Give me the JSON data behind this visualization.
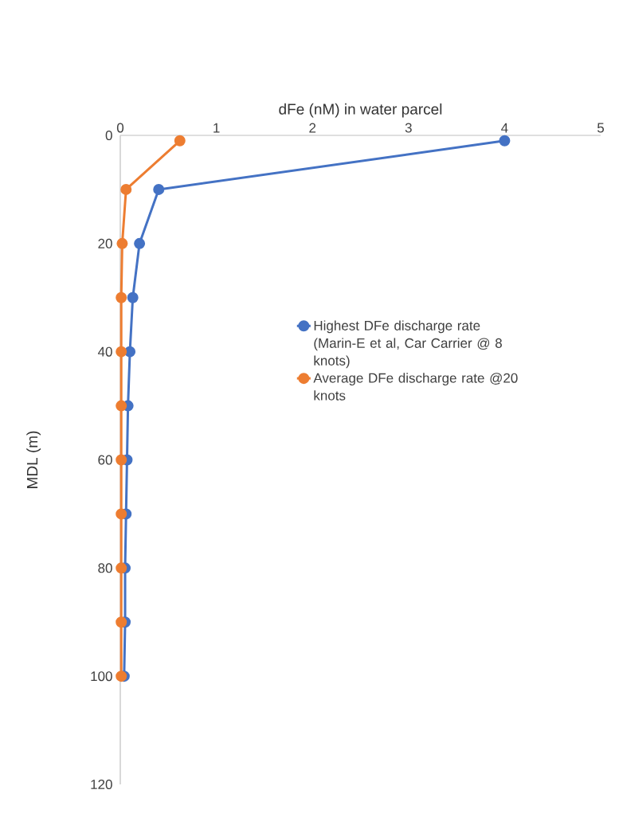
{
  "chart_data": {
    "type": "line",
    "xlabel": "dFe (nM) in water parcel",
    "ylabel": "MDL (m)",
    "xlim": [
      0,
      5
    ],
    "xticks": [
      0,
      1,
      2,
      3,
      4,
      5
    ],
    "ylim": [
      120,
      0
    ],
    "yticks": [
      0,
      20,
      40,
      60,
      80,
      100,
      120
    ],
    "series": [
      {
        "name": "Highest DFe discharge rate (Marin-E et al, Car Carrier @ 8 knots)",
        "color": "#4472c4",
        "x": [
          4.0,
          0.4,
          0.2,
          0.13,
          0.1,
          0.08,
          0.07,
          0.06,
          0.05,
          0.05,
          0.04
        ],
        "values": [
          1,
          10,
          20,
          30,
          40,
          50,
          60,
          70,
          80,
          90,
          100
        ]
      },
      {
        "name": "Average DFe discharge rate @20 knots",
        "color": "#ed7d31",
        "x": [
          0.62,
          0.06,
          0.02,
          0.01,
          0.01,
          0.01,
          0.01,
          0.01,
          0.01,
          0.01,
          0.01
        ],
        "values": [
          1,
          10,
          20,
          30,
          40,
          50,
          60,
          70,
          80,
          90,
          100
        ]
      }
    ],
    "marker": "circle",
    "line_style": "solid",
    "grid": false,
    "legend": "right"
  }
}
